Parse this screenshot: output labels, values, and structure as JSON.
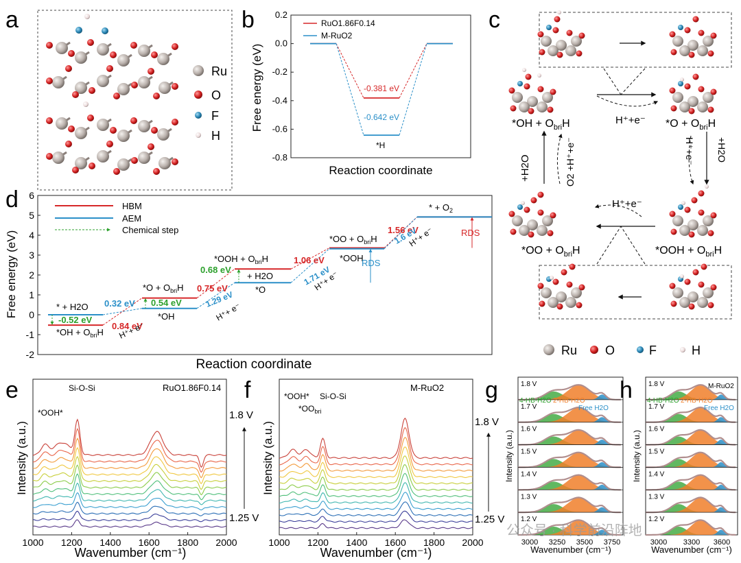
{
  "panels": {
    "a": "a",
    "b": "b",
    "c": "c",
    "d": "d",
    "e": "e",
    "f": "f",
    "g": "g",
    "h": "h"
  },
  "colors": {
    "red": "#d62728",
    "blue": "#2a8fc8",
    "green": "#2ca02c",
    "orange": "#f07f2a",
    "ru": "#b9b0ab",
    "o": "#d21f1f",
    "f": "#2a86b5",
    "h": "#ead9d9"
  },
  "legend_atoms": {
    "ru": "Ru",
    "o": "O",
    "f": "F",
    "h": "H"
  },
  "chart_data": [
    {
      "panel": "b",
      "type": "line",
      "ylabel": "Free energy (eV)",
      "xlabel": "Reaction coordinate",
      "ylim": [
        -0.8,
        0.2
      ],
      "yticks": [
        "0.2",
        "0.0",
        "-0.2",
        "-0.4",
        "-0.6",
        "-0.8"
      ],
      "legend": [
        "RuO1.86F0.14",
        "M-RuO2"
      ],
      "series": [
        {
          "name": "RuO1.86F0.14",
          "color": "#d62728",
          "values": [
            0,
            -0.381,
            0
          ]
        },
        {
          "name": "M-RuO2",
          "color": "#2a8fc8",
          "values": [
            0,
            -0.642,
            0
          ]
        }
      ],
      "annotations": {
        "red": "-0.381 eV",
        "blue": "-0.642 eV",
        "state": "*H"
      }
    },
    {
      "panel": "d",
      "type": "line",
      "ylabel": "Free energy (eV)",
      "xlabel": "Reaction coordinate",
      "ylim": [
        -2,
        6
      ],
      "yticks": [
        "6",
        "5",
        "4",
        "3",
        "2",
        "1",
        "0",
        "-1",
        "-2"
      ],
      "legend": [
        "HBM",
        "AEM",
        "Chemical step"
      ],
      "series": [
        {
          "name": "HBM",
          "color": "#d62728",
          "values": [
            -0.52,
            0.32,
            0.84,
            2.3,
            3.36,
            4.92
          ]
        },
        {
          "name": "AEM",
          "color": "#2a8fc8",
          "values": [
            0,
            0.32,
            1.61,
            3.32,
            4.92
          ]
        }
      ],
      "labels": {
        "s0": "* + H2O",
        "s0b": "*OH + O",
        "s0b_sub": "bri",
        "s0b_end": "H",
        "s1": "*O + O",
        "s1_sub": "bri",
        "s1_end": "H",
        "s1b": "*OH",
        "s2": "*OOH + O",
        "s2_sub": "bri",
        "s2_end": "H",
        "s2b": "+ H2O",
        "s2c": "*O",
        "s3": "*OO + O",
        "s3_sub": "bri",
        "s3_end": "H",
        "s3b": "*OOH",
        "s4": "* + O",
        "s4_sub": "2",
        "rds": "RDS",
        "v052": "-0.52 eV",
        "v032": "0.32 eV",
        "v084": "0.84 eV",
        "v054": "0.54 eV",
        "v075": "0.75 eV",
        "v068": "0.68 eV",
        "v129": "1.29 eV",
        "v106": "1.06 eV",
        "v171": "1.71 eV",
        "v156": "1.56 eV",
        "v16": "1.6 eV",
        "he": "H⁺+ e⁻"
      }
    },
    {
      "panel": "e",
      "type": "line",
      "title": "RuO1.86F0.14",
      "xlabel": "Wavenumber (cm⁻¹)",
      "ylabel": "Intensity (a.u.)",
      "xlim": [
        1000,
        2000
      ],
      "xticks": [
        "1000",
        "1200",
        "1400",
        "1600",
        "1800",
        "2000"
      ],
      "annotations": {
        "ooh": "*OOH*",
        "sios": "Si-O-Si",
        "vtop": "1.8 V",
        "vbot": "1.25 V"
      },
      "n_series": 12
    },
    {
      "panel": "f",
      "type": "line",
      "title": "M-RuO2",
      "xlabel": "Wavenumber (cm⁻¹)",
      "ylabel": "Intensity (a.u.)",
      "xlim": [
        1000,
        2000
      ],
      "xticks": [
        "1000",
        "1200",
        "1400",
        "1600",
        "1800",
        "2000"
      ],
      "annotations": {
        "ooh": "*OOH*",
        "oo": "*OO",
        "oo_sub": "bri",
        "sios": "Si-O-Si",
        "vtop": "1.8 V",
        "vbot": "1.25 V"
      },
      "n_series": 12
    },
    {
      "panel": "g",
      "type": "area",
      "xlabel": "Wavenumber (cm⁻¹)",
      "ylabel": "Intensity (a.u.)",
      "xticks": [
        "3000",
        "3250",
        "3500",
        "3750"
      ],
      "voltages": [
        "1.8 V",
        "1.7 V",
        "1.6 V",
        "1.5 V",
        "1.4 V",
        "1.3 V",
        "1.2 V"
      ],
      "components": [
        "4-HB-H2O",
        "2-HB-H2O",
        "Free H2O"
      ]
    },
    {
      "panel": "h",
      "type": "area",
      "title": "M-RuO2",
      "xlabel": "Wavenumber (cm⁻¹)",
      "ylabel": "Intensity (a.u.)",
      "xticks": [
        "3000",
        "3300",
        "3600"
      ],
      "voltages": [
        "1.8 V",
        "1.7 V",
        "1.6 V",
        "1.5 V",
        "1.4 V",
        "1.3 V",
        "1.2 V"
      ],
      "components": [
        "4-HB-H2O",
        "2-HB-H2O",
        "Free H2O"
      ]
    }
  ],
  "panel_c": {
    "s1": "*OH + O",
    "s1_sub": "bri",
    "s1_end": "H",
    "s2": "*O + O",
    "s2_sub": "bri",
    "s2_end": "H",
    "s3": "*OOH + O",
    "s3_sub": "bri",
    "s3_end": "H",
    "s4": "*OO + O",
    "s4_sub": "bri",
    "s4_end": "H",
    "he": "H⁺+e⁻",
    "h2o": "+H2O",
    "he_rot": "H⁺+e⁻",
    "h2o_rot": "+H2O",
    "o2": "O2 +H⁺+e⁻"
  },
  "watermark": "公众号 · 科学前沿阵地"
}
